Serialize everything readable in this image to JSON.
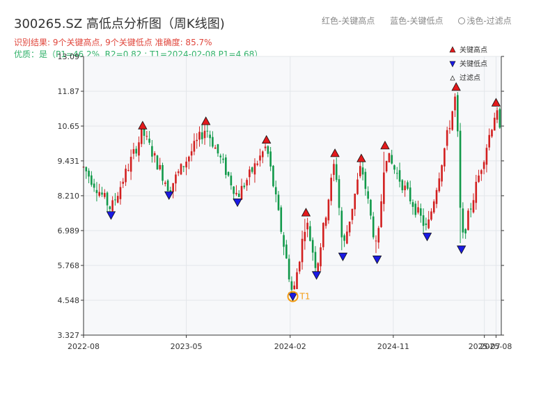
{
  "header": {
    "title": "300265.SZ 高低点分析图（周K线图)",
    "legend_red": "红色-关键高点",
    "legend_blue": "蓝色-关键低点",
    "legend_light": "浅色-过滤点",
    "result_text": "识别结果: 9个关键高点, 9个关键低点  准确度: 85.7%",
    "quality_text": "优质：是（P1=46.2%, R2=0.82 ; T1=2024-02-08 P1=4.68）"
  },
  "colors": {
    "up": "#d21f1f",
    "down": "#11994a",
    "high_marker": "#e31a1c",
    "low_marker": "#1a1ae3",
    "annotation": "#f39c12",
    "plot_bg": "#f7f8fa"
  },
  "chart_data": {
    "type": "candlestick",
    "title": "300265.SZ 高低点分析图（周K线图)",
    "ylim": [
      3.327,
      13.09
    ],
    "y_ticks": [
      "3.327",
      "4.548",
      "5.768",
      "6.989",
      "8.210",
      "9.431",
      "10.65",
      "11.87",
      "13.09"
    ],
    "x_tick_labels": [
      "2022-08",
      "2023-05",
      "2024-02",
      "2024-11",
      "2025-07",
      "2025-08"
    ],
    "x_range": [
      "2022-08-01",
      "2025-08-15"
    ],
    "grid": true,
    "legend_placement": "top-right",
    "legend": [
      "关键高点",
      "关键低点",
      "过滤点"
    ],
    "key_points": [
      {
        "type": "low",
        "date": "2022-10-13",
        "price": 7.75
      },
      {
        "type": "high",
        "date": "2023-01-05",
        "price": 10.45
      },
      {
        "type": "low",
        "date": "2023-03-16",
        "price": 8.45
      },
      {
        "type": "high",
        "date": "2023-06-22",
        "price": 10.6
      },
      {
        "type": "low",
        "date": "2023-09-14",
        "price": 8.2
      },
      {
        "type": "high",
        "date": "2023-11-30",
        "price": 9.95
      },
      {
        "type": "low",
        "date": "2024-02-08",
        "price": 4.68
      },
      {
        "type": "high",
        "date": "2024-03-14",
        "price": 7.4
      },
      {
        "type": "low",
        "date": "2024-04-11",
        "price": 5.65
      },
      {
        "type": "high",
        "date": "2024-05-30",
        "price": 9.48
      },
      {
        "type": "low",
        "date": "2024-06-20",
        "price": 6.3
      },
      {
        "type": "high",
        "date": "2024-08-08",
        "price": 9.3
      },
      {
        "type": "low",
        "date": "2024-09-19",
        "price": 6.2
      },
      {
        "type": "high",
        "date": "2024-10-10",
        "price": 9.75
      },
      {
        "type": "low",
        "date": "2025-01-30",
        "price": 7.0
      },
      {
        "type": "high",
        "date": "2025-04-17",
        "price": 11.8
      },
      {
        "type": "low",
        "date": "2025-05-01",
        "price": 6.55
      },
      {
        "type": "high",
        "date": "2025-08-01",
        "price": 11.25
      }
    ],
    "annotations": [
      {
        "label": "T1",
        "date": "2024-02-08",
        "price": 4.68
      }
    ]
  }
}
